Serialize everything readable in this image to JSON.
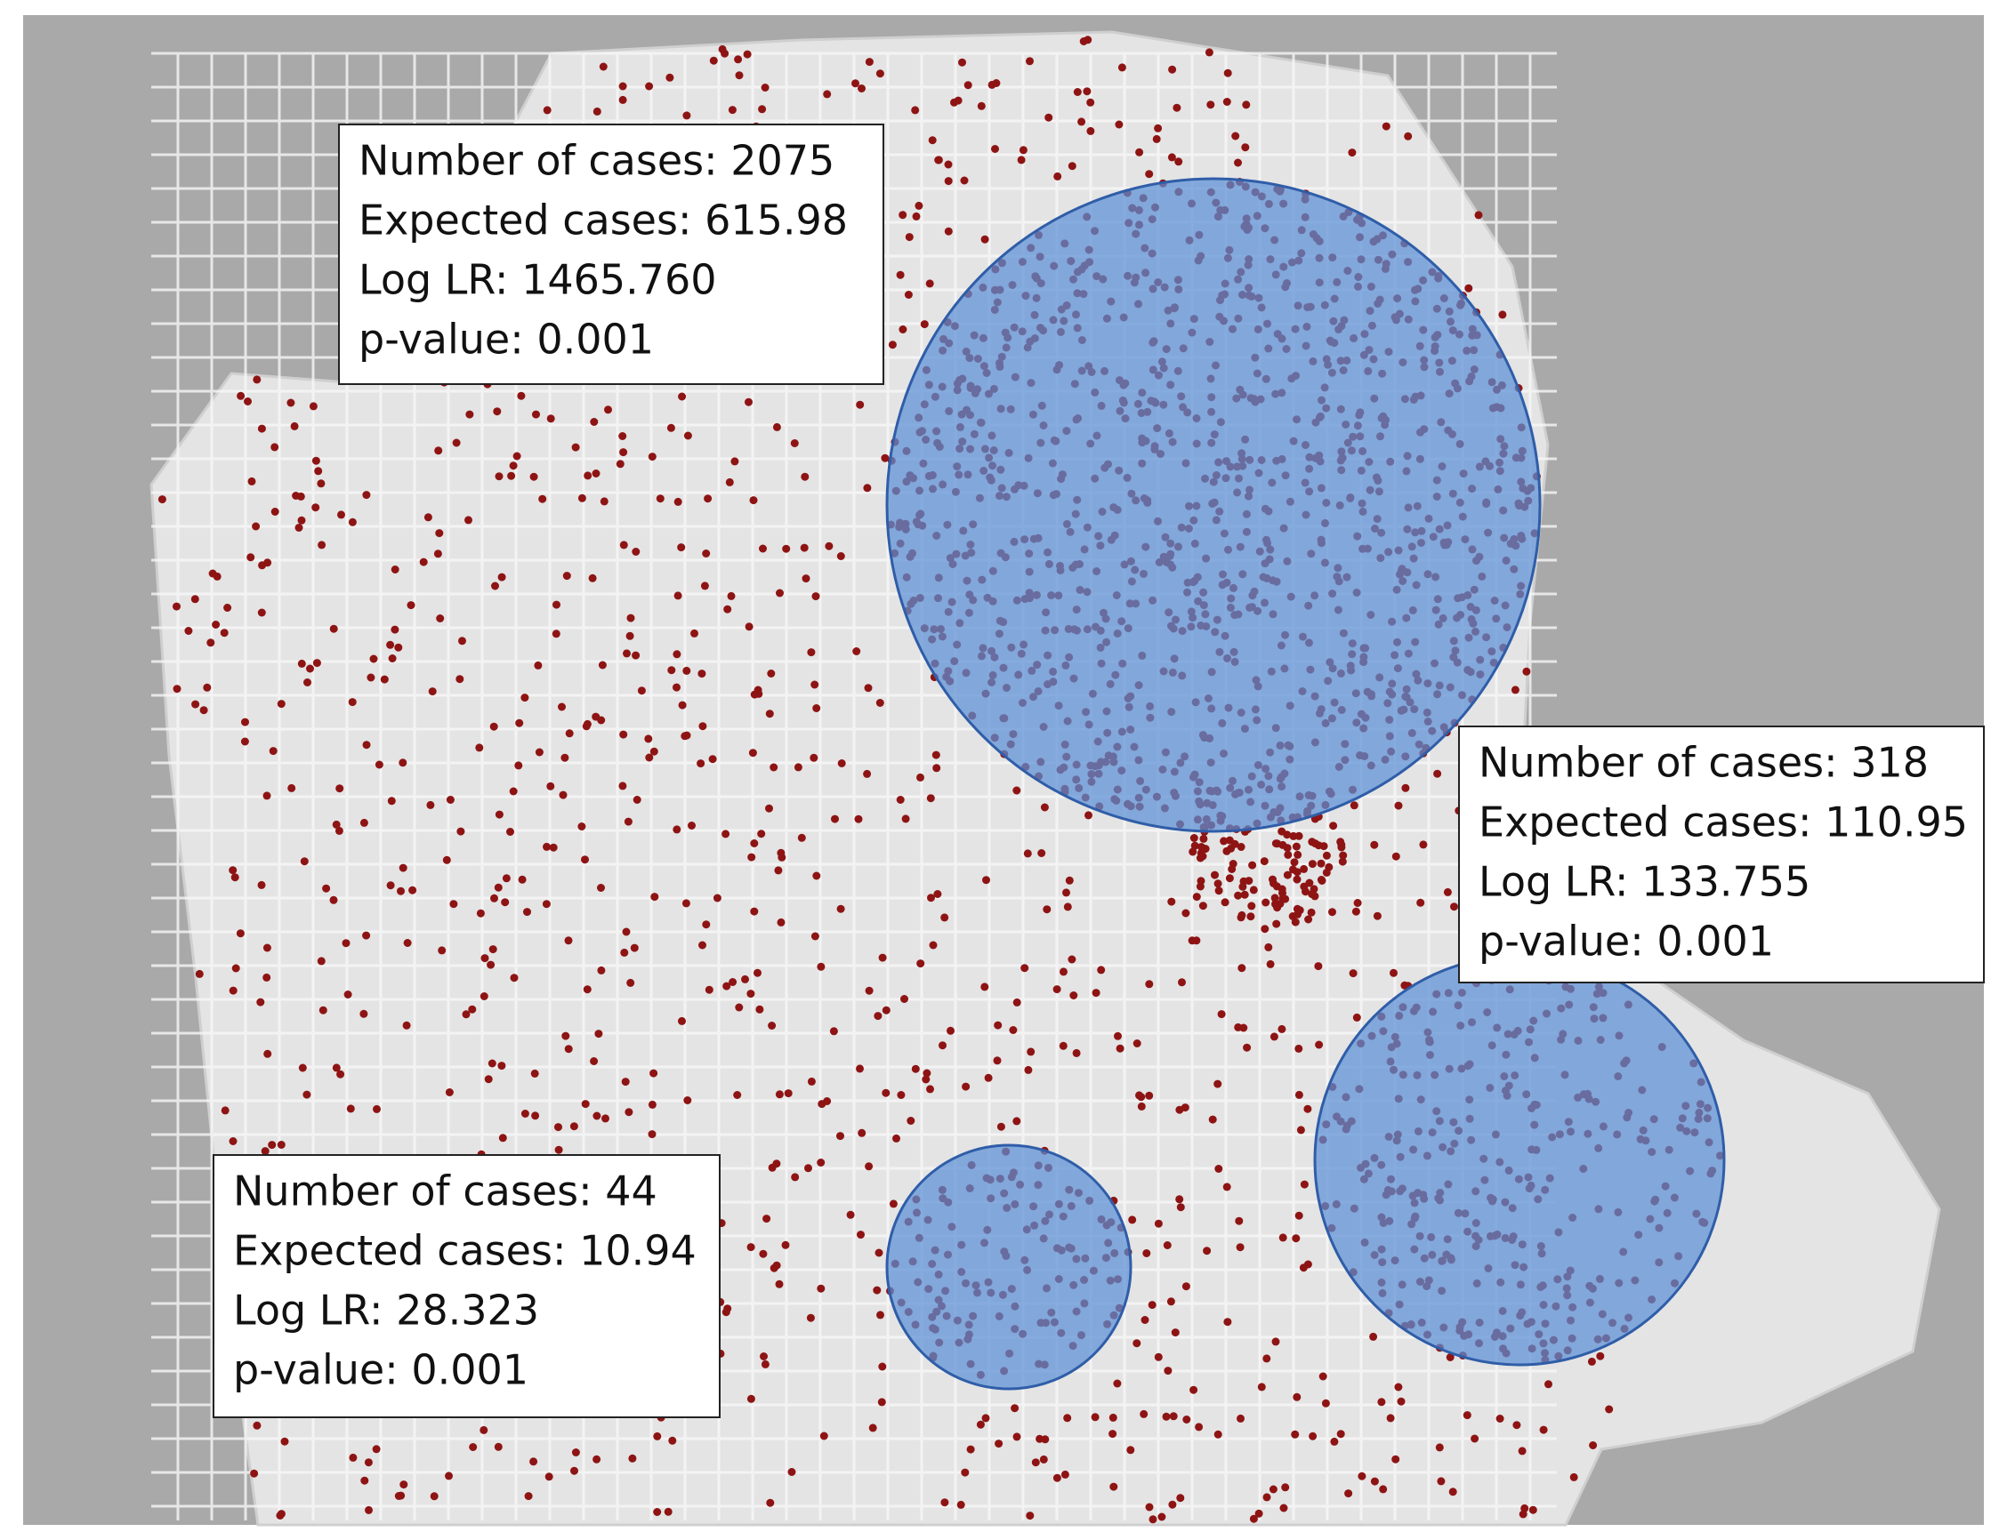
{
  "clusters": [
    {
      "lines": [
        "Number of cases: 2075",
        "Expected cases: 615.98",
        "Log LR: 1465.760",
        "p-value: 0.001"
      ]
    },
    {
      "lines": [
        "Number of cases: 318",
        "Expected cases: 110.95",
        "Log LR: 133.755",
        "p-value: 0.001"
      ]
    },
    {
      "lines": [
        "Number of cases: 44",
        "Expected cases: 10.94",
        "Log LR: 28.323",
        "p-value: 0.001"
      ]
    }
  ]
}
